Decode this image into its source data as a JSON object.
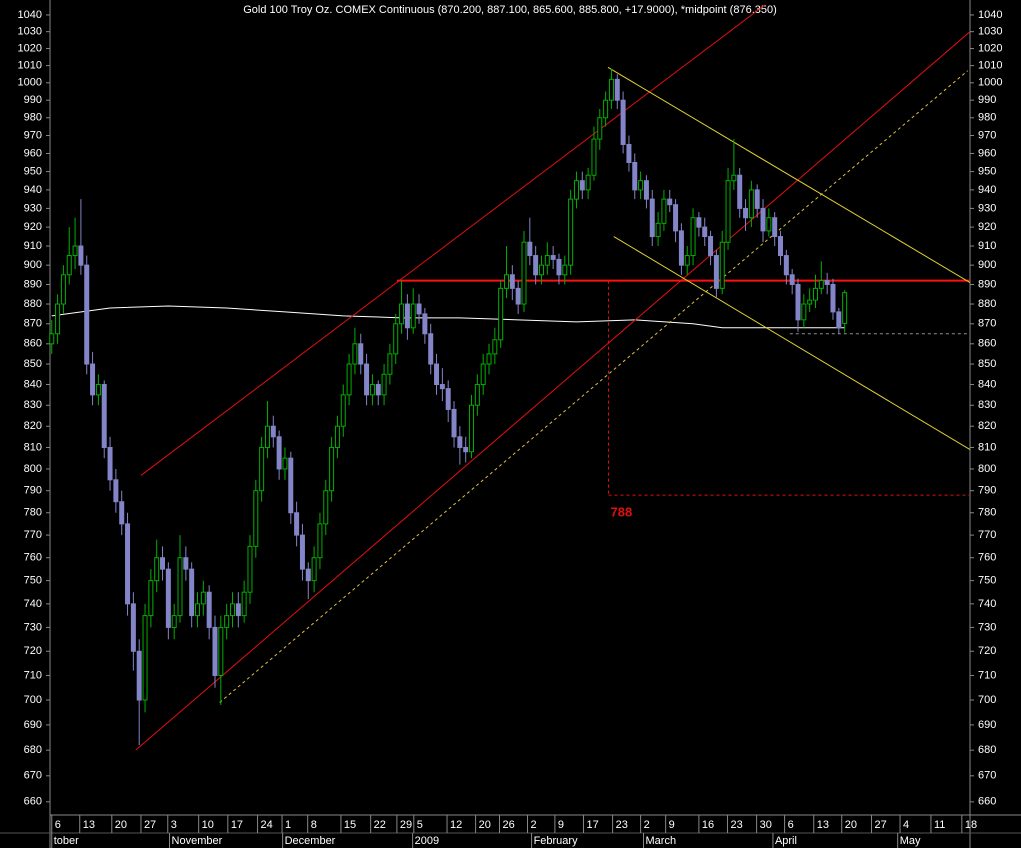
{
  "chart_data": {
    "type": "candlestick",
    "title": "Gold 100 Troy Oz. COMEX Continuous (870.200, 887.100, 865.600, 885.800, +17.9000), *midpoint (876.350)",
    "log_scale": true,
    "ylim": [
      655,
      1046
    ],
    "xlim": [
      -0.3,
      157.5
    ],
    "yticks": [
      660,
      670,
      680,
      690,
      700,
      710,
      720,
      730,
      740,
      750,
      760,
      770,
      780,
      790,
      800,
      810,
      820,
      830,
      840,
      850,
      860,
      870,
      880,
      890,
      900,
      910,
      920,
      930,
      940,
      950,
      960,
      970,
      980,
      990,
      1000,
      1010,
      1020,
      1030,
      1040
    ],
    "xticks": [
      {
        "value": 0,
        "label": "6"
      },
      {
        "value": 4.8,
        "label": "13"
      },
      {
        "value": 10.3,
        "label": "20"
      },
      {
        "value": 15.3,
        "label": "27"
      },
      {
        "value": 19.9,
        "label": "3"
      },
      {
        "value": 25.2,
        "label": "10"
      },
      {
        "value": 30.2,
        "label": "17"
      },
      {
        "value": 35.3,
        "label": "24"
      },
      {
        "value": 39.5,
        "label": "1"
      },
      {
        "value": 43.9,
        "label": "8"
      },
      {
        "value": 49.6,
        "label": "15"
      },
      {
        "value": 54.7,
        "label": "22"
      },
      {
        "value": 59.2,
        "label": "29"
      },
      {
        "value": 62.1,
        "label": "5"
      },
      {
        "value": 67.8,
        "label": "12"
      },
      {
        "value": 72.7,
        "label": "20"
      },
      {
        "value": 76.8,
        "label": "26"
      },
      {
        "value": 81.6,
        "label": "2"
      },
      {
        "value": 86.3,
        "label": "9"
      },
      {
        "value": 91.2,
        "label": "17"
      },
      {
        "value": 96.2,
        "label": "23"
      },
      {
        "value": 101.0,
        "label": "2"
      },
      {
        "value": 105.3,
        "label": "9"
      },
      {
        "value": 111.0,
        "label": "16"
      },
      {
        "value": 115.9,
        "label": "23"
      },
      {
        "value": 120.9,
        "label": "30"
      },
      {
        "value": 125.7,
        "label": "6"
      },
      {
        "value": 130.7,
        "label": "13"
      },
      {
        "value": 135.5,
        "label": "20"
      },
      {
        "value": 140.6,
        "label": "27"
      },
      {
        "value": 145.5,
        "label": "4"
      },
      {
        "value": 150.8,
        "label": "11"
      },
      {
        "value": 156.1,
        "label": "18"
      }
    ],
    "month_ticks": [
      {
        "value": 0,
        "label": "tober"
      },
      {
        "value": 20.2,
        "label": "November"
      },
      {
        "value": 39.6,
        "label": "December"
      },
      {
        "value": 61.9,
        "label": "2009"
      },
      {
        "value": 82.3,
        "label": "February"
      },
      {
        "value": 101.5,
        "label": "March"
      },
      {
        "value": 123.7,
        "label": "April"
      },
      {
        "value": 145.1,
        "label": "May"
      }
    ],
    "up_color": "#00b000",
    "down_color": "#8484c8",
    "ohlc": [
      [
        860,
        872,
        855,
        865
      ],
      [
        865,
        885,
        860,
        880
      ],
      [
        880,
        900,
        875,
        895
      ],
      [
        895,
        920,
        890,
        905
      ],
      [
        905,
        925,
        898,
        910
      ],
      [
        910,
        935,
        895,
        900
      ],
      [
        900,
        905,
        845,
        850
      ],
      [
        850,
        856,
        830,
        835
      ],
      [
        835,
        845,
        830,
        840
      ],
      [
        840,
        842,
        805,
        810
      ],
      [
        810,
        815,
        790,
        795
      ],
      [
        795,
        800,
        780,
        785
      ],
      [
        785,
        790,
        770,
        775
      ],
      [
        775,
        780,
        735,
        740
      ],
      [
        740,
        745,
        712,
        720
      ],
      [
        720,
        725,
        682,
        700
      ],
      [
        700,
        740,
        695,
        735
      ],
      [
        735,
        755,
        730,
        750
      ],
      [
        750,
        768,
        745,
        760
      ],
      [
        760,
        765,
        750,
        755
      ],
      [
        755,
        758,
        725,
        730
      ],
      [
        730,
        740,
        725,
        735
      ],
      [
        735,
        770,
        732,
        760
      ],
      [
        760,
        765,
        750,
        755
      ],
      [
        755,
        758,
        730,
        735
      ],
      [
        735,
        745,
        730,
        740
      ],
      [
        740,
        750,
        735,
        745
      ],
      [
        745,
        748,
        725,
        730
      ],
      [
        730,
        735,
        705,
        710
      ],
      [
        710,
        735,
        698,
        730
      ],
      [
        730,
        740,
        725,
        735
      ],
      [
        735,
        745,
        730,
        740
      ],
      [
        740,
        745,
        730,
        735
      ],
      [
        735,
        750,
        732,
        745
      ],
      [
        745,
        770,
        740,
        765
      ],
      [
        765,
        795,
        760,
        790
      ],
      [
        790,
        815,
        785,
        810
      ],
      [
        810,
        832,
        805,
        820
      ],
      [
        820,
        825,
        810,
        815
      ],
      [
        815,
        818,
        795,
        800
      ],
      [
        800,
        810,
        795,
        805
      ],
      [
        805,
        808,
        775,
        780
      ],
      [
        780,
        785,
        765,
        770
      ],
      [
        770,
        775,
        750,
        755
      ],
      [
        755,
        758,
        742,
        750
      ],
      [
        750,
        765,
        745,
        760
      ],
      [
        760,
        780,
        755,
        775
      ],
      [
        775,
        795,
        770,
        790
      ],
      [
        790,
        815,
        785,
        810
      ],
      [
        810,
        825,
        805,
        820
      ],
      [
        820,
        840,
        815,
        835
      ],
      [
        835,
        855,
        830,
        850
      ],
      [
        850,
        868,
        845,
        860
      ],
      [
        860,
        865,
        845,
        850
      ],
      [
        850,
        855,
        830,
        835
      ],
      [
        835,
        845,
        830,
        840
      ],
      [
        840,
        842,
        830,
        835
      ],
      [
        835,
        850,
        830,
        845
      ],
      [
        845,
        860,
        840,
        855
      ],
      [
        855,
        875,
        850,
        870
      ],
      [
        870,
        892,
        865,
        880
      ],
      [
        880,
        885,
        862,
        868
      ],
      [
        868,
        888,
        865,
        880
      ],
      [
        880,
        885,
        870,
        875
      ],
      [
        875,
        878,
        860,
        865
      ],
      [
        865,
        870,
        845,
        850
      ],
      [
        850,
        855,
        835,
        840
      ],
      [
        840,
        848,
        832,
        838
      ],
      [
        838,
        842,
        822,
        828
      ],
      [
        828,
        832,
        810,
        815
      ],
      [
        815,
        820,
        802,
        810
      ],
      [
        810,
        815,
        803,
        808
      ],
      [
        808,
        835,
        805,
        830
      ],
      [
        830,
        845,
        825,
        840
      ],
      [
        840,
        855,
        835,
        850
      ],
      [
        850,
        860,
        845,
        855
      ],
      [
        855,
        868,
        850,
        862
      ],
      [
        862,
        892,
        858,
        888
      ],
      [
        888,
        910,
        883,
        895
      ],
      [
        895,
        900,
        882,
        888
      ],
      [
        888,
        892,
        875,
        880
      ],
      [
        880,
        918,
        876,
        912
      ],
      [
        912,
        925,
        900,
        905
      ],
      [
        905,
        910,
        890,
        895
      ],
      [
        895,
        905,
        890,
        900
      ],
      [
        900,
        912,
        895,
        905
      ],
      [
        905,
        910,
        898,
        903
      ],
      [
        903,
        906,
        890,
        895
      ],
      [
        895,
        905,
        890,
        900
      ],
      [
        900,
        940,
        895,
        935
      ],
      [
        935,
        950,
        930,
        945
      ],
      [
        945,
        950,
        935,
        940
      ],
      [
        940,
        952,
        935,
        948
      ],
      [
        948,
        975,
        945,
        968
      ],
      [
        968,
        985,
        962,
        980
      ],
      [
        980,
        995,
        975,
        990
      ],
      [
        990,
        1008,
        985,
        1002
      ],
      [
        1002,
        1005,
        985,
        990
      ],
      [
        990,
        995,
        960,
        965
      ],
      [
        965,
        970,
        950,
        955
      ],
      [
        955,
        960,
        935,
        940
      ],
      [
        940,
        950,
        935,
        945
      ],
      [
        945,
        948,
        930,
        935
      ],
      [
        935,
        940,
        910,
        915
      ],
      [
        915,
        928,
        910,
        922
      ],
      [
        922,
        940,
        918,
        935
      ],
      [
        935,
        940,
        928,
        932
      ],
      [
        932,
        935,
        912,
        918
      ],
      [
        918,
        922,
        895,
        900
      ],
      [
        900,
        910,
        895,
        905
      ],
      [
        905,
        930,
        900,
        925
      ],
      [
        925,
        928,
        915,
        920
      ],
      [
        920,
        925,
        910,
        915
      ],
      [
        915,
        918,
        900,
        905
      ],
      [
        905,
        908,
        883,
        888
      ],
      [
        888,
        918,
        885,
        912
      ],
      [
        912,
        952,
        908,
        945
      ],
      [
        945,
        968,
        940,
        948
      ],
      [
        948,
        952,
        925,
        930
      ],
      [
        930,
        935,
        918,
        925
      ],
      [
        925,
        945,
        920,
        940
      ],
      [
        940,
        943,
        925,
        930
      ],
      [
        930,
        935,
        912,
        918
      ],
      [
        918,
        930,
        915,
        925
      ],
      [
        925,
        928,
        910,
        915
      ],
      [
        915,
        918,
        900,
        905
      ],
      [
        905,
        908,
        890,
        895
      ],
      [
        895,
        898,
        885,
        890
      ],
      [
        890,
        893,
        866,
        872
      ],
      [
        872,
        885,
        868,
        880
      ],
      [
        880,
        888,
        876,
        882
      ],
      [
        882,
        895,
        878,
        888
      ],
      [
        888,
        902,
        885,
        892
      ],
      [
        892,
        896,
        885,
        890
      ],
      [
        890,
        893,
        872,
        876
      ],
      [
        876,
        878,
        865,
        868
      ],
      [
        870.2,
        887.1,
        865.6,
        885.8
      ]
    ],
    "ma": {
      "color": "#ffffff",
      "x": [
        0,
        10,
        20,
        30,
        40,
        50,
        60,
        70,
        80,
        90,
        100,
        110,
        115,
        120,
        130,
        136
      ],
      "values": [
        874,
        878,
        879,
        878,
        876,
        874,
        873,
        873,
        872,
        871,
        872,
        870,
        868,
        868,
        868,
        868
      ]
    },
    "annotations": [
      {
        "x": [
          15.3,
          122.3
        ],
        "y": [
          797,
          1046
        ],
        "color": "#e01010",
        "dash": false
      },
      {
        "x": [
          14.4,
          157.5
        ],
        "y": [
          680,
          1030
        ],
        "color": "#e01010",
        "dash": false
      },
      {
        "x": [
          28.8,
          157.1
        ],
        "y": [
          699,
          1007
        ],
        "color": "#e0c040",
        "dash": true
      },
      {
        "x": [
          59.2,
          157.5
        ],
        "y": [
          892,
          892
        ],
        "color": "#ff1010",
        "dash": false
      },
      {
        "x": [
          95.4,
          157.5
        ],
        "y": [
          1009,
          891
        ],
        "color": "#e0d030",
        "dash": false
      },
      {
        "x": [
          96.4,
          157.5
        ],
        "y": [
          915,
          809
        ],
        "color": "#e0d030",
        "dash": false
      },
      {
        "x": [
          95.5,
          157.5
        ],
        "y": [
          788,
          788
        ],
        "color": "#e01010",
        "dash": true,
        "label": "788"
      },
      {
        "x": [
          95.5,
          95.5
        ],
        "y": [
          892,
          788
        ],
        "color": "#e01010",
        "dash": true
      },
      {
        "x": [
          126.6,
          157.5
        ],
        "y": [
          865,
          865
        ],
        "color": "#909090",
        "dash": true
      }
    ]
  }
}
